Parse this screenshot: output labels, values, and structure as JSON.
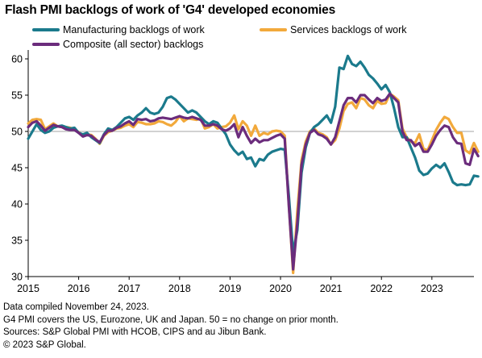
{
  "title": "Flash PMI backlogs of work of 'G4' developed economies",
  "notes": [
    "Data compiled November 24, 2023.",
    "G4 PMI covers the US, Eurozone, UK and Japan. 50 = no change on prior month.",
    "Sources: S&P Global PMI with HCOB, CIPS and au Jibun Bank.",
    "© 2023 S&P Global."
  ],
  "chart_data": {
    "type": "line",
    "title": "Flash PMI backlogs of work of 'G4' developed economies",
    "xlabel": "",
    "ylabel": "",
    "xlim": [
      "2015-01",
      "2023-11"
    ],
    "ylim": [
      30,
      61
    ],
    "yticks": [
      30,
      35,
      40,
      45,
      50,
      55,
      60
    ],
    "xticks": [
      "2015",
      "2016",
      "2017",
      "2018",
      "2019",
      "2020",
      "2021",
      "2022",
      "2023"
    ],
    "reference_line": 50,
    "grid": false,
    "legend_position": "top",
    "x_start": "2015-01",
    "x_frequency": "monthly",
    "series": [
      {
        "name": "Manufacturing backlogs of work",
        "color": "#1b7a8c",
        "values": [
          49.0,
          50.0,
          51.0,
          50.2,
          49.8,
          50.0,
          50.5,
          50.7,
          50.8,
          50.6,
          50.4,
          50.5,
          49.8,
          49.6,
          49.8,
          49.2,
          48.8,
          48.4,
          49.6,
          50.4,
          50.2,
          50.6,
          51.2,
          51.8,
          52.0,
          51.6,
          52.2,
          52.6,
          53.2,
          52.6,
          52.4,
          52.6,
          53.4,
          54.6,
          54.8,
          54.4,
          53.8,
          53.2,
          52.6,
          52.9,
          52.6,
          52.0,
          51.4,
          51.0,
          51.4,
          51.2,
          50.4,
          49.6,
          48.2,
          47.4,
          46.8,
          47.2,
          46.2,
          46.4,
          45.2,
          46.2,
          46.0,
          46.8,
          47.2,
          47.4,
          47.6,
          47.5,
          41.0,
          33.3,
          36.4,
          44.3,
          47.8,
          49.8,
          50.6,
          51.0,
          51.6,
          52.2,
          51.2,
          53.4,
          58.8,
          58.6,
          60.4,
          59.3,
          59.0,
          59.6,
          58.8,
          57.8,
          57.3,
          56.6,
          55.8,
          56.4,
          55.4,
          53.2,
          50.6,
          49.2,
          49.2,
          47.8,
          46.4,
          44.6,
          44.0,
          44.2,
          44.9,
          45.4,
          45.0,
          45.6,
          44.4,
          43.0,
          42.6,
          42.7,
          42.6,
          42.7,
          43.9,
          43.8
        ]
      },
      {
        "name": "Services backlogs of work",
        "color": "#f2a93b",
        "values": [
          51.1,
          51.6,
          51.7,
          51.6,
          50.3,
          50.7,
          51.1,
          50.7,
          50.6,
          50.6,
          50.5,
          50.3,
          49.9,
          49.4,
          49.6,
          49.5,
          49.0,
          48.3,
          49.4,
          49.9,
          50.1,
          50.4,
          50.5,
          50.8,
          51.0,
          50.6,
          51.3,
          51.2,
          51.0,
          51.0,
          51.1,
          51.4,
          51.3,
          51.0,
          50.8,
          51.3,
          52.1,
          51.4,
          51.8,
          51.7,
          51.6,
          51.8,
          50.4,
          50.6,
          51.0,
          50.4,
          50.6,
          50.7,
          51.2,
          52.2,
          50.3,
          51.4,
          50.8,
          49.4,
          50.8,
          49.4,
          49.8,
          49.6,
          50.0,
          50.1,
          50.0,
          49.4,
          39.8,
          30.5,
          39.0,
          46.0,
          48.6,
          50.0,
          50.4,
          49.8,
          49.6,
          49.2,
          48.2,
          48.8,
          50.4,
          52.8,
          53.8,
          54.0,
          53.2,
          54.6,
          54.4,
          53.6,
          53.2,
          54.2,
          53.8,
          53.9,
          55.2,
          54.8,
          54.3,
          50.4,
          49.2,
          48.6,
          48.4,
          49.6,
          47.6,
          47.4,
          48.8,
          50.2,
          51.2,
          52.0,
          51.7,
          50.6,
          49.8,
          49.8,
          47.4,
          47.0,
          48.4,
          47.2
        ]
      },
      {
        "name": "Composite (all sector) backlogs",
        "color": "#6b2c7c",
        "values": [
          50.6,
          51.2,
          51.4,
          50.8,
          50.1,
          50.5,
          50.9,
          50.7,
          50.6,
          50.3,
          50.2,
          50.2,
          49.8,
          49.3,
          49.5,
          49.4,
          48.9,
          48.5,
          49.5,
          50.1,
          50.1,
          50.5,
          50.7,
          51.1,
          51.4,
          50.9,
          51.7,
          51.6,
          51.7,
          51.4,
          51.5,
          51.8,
          51.9,
          51.8,
          51.7,
          51.9,
          52.1,
          51.9,
          51.8,
          52.0,
          51.8,
          51.6,
          50.8,
          50.8,
          51.0,
          50.8,
          50.3,
          50.1,
          50.4,
          51.0,
          49.2,
          50.6,
          49.4,
          48.4,
          49.0,
          48.5,
          48.8,
          48.8,
          49.1,
          49.4,
          49.6,
          49.0,
          39.6,
          31.0,
          37.4,
          45.4,
          48.2,
          49.8,
          50.2,
          49.6,
          49.4,
          49.0,
          48.2,
          49.2,
          51.4,
          53.6,
          54.6,
          54.6,
          54.0,
          55.0,
          55.0,
          54.4,
          53.9,
          54.6,
          54.2,
          54.4,
          55.2,
          54.6,
          54.0,
          50.0,
          48.8,
          48.8,
          48.0,
          48.4,
          47.2,
          47.2,
          48.2,
          49.4,
          50.2,
          50.8,
          50.6,
          49.2,
          48.4,
          48.3,
          45.6,
          45.4,
          47.6,
          46.6
        ]
      }
    ]
  }
}
